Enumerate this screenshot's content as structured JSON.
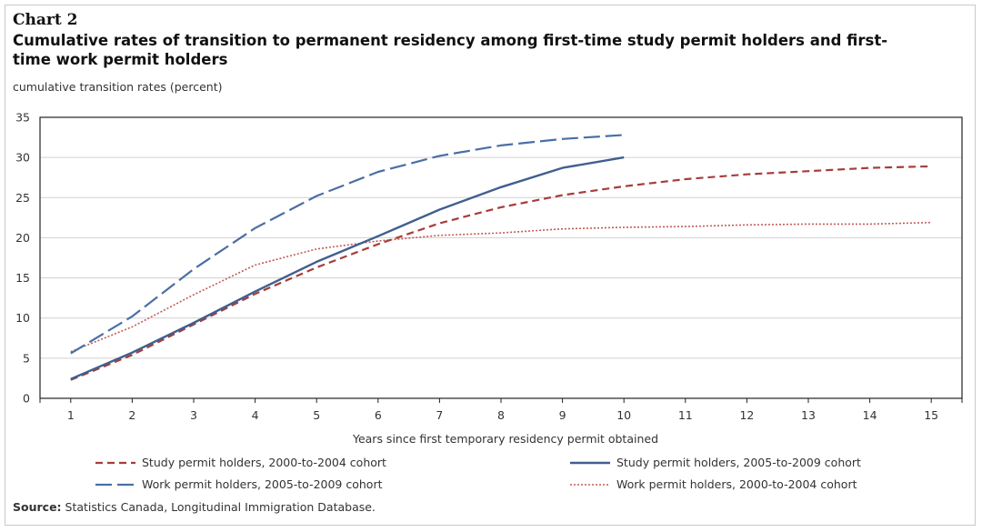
{
  "header": {
    "chart_number": "Chart 2",
    "title": "Cumulative rates of transition to permanent residency among first-time  study permit holders and first-time  work permit holders"
  },
  "footer": {
    "source_label": "Source:",
    "source_text": " Statistics Canada, Longitudinal Immigration Database."
  },
  "chart_data": {
    "type": "line",
    "ylabel": "cumulative transition rates (percent)",
    "xlabel": "Years since first temporary residency permit obtained",
    "ylim": [
      0,
      35
    ],
    "yticks": [
      0,
      5,
      10,
      15,
      20,
      25,
      30,
      35
    ],
    "xlim": [
      0.5,
      15.5
    ],
    "xticks": [
      1,
      2,
      3,
      4,
      5,
      6,
      7,
      8,
      9,
      10,
      11,
      12,
      13,
      14,
      15
    ],
    "grid": true,
    "legend_position": "bottom",
    "series": [
      {
        "name": "Study permit holders, 2000-to-2004 cohort",
        "color": "#a63d3a",
        "style": "dashed",
        "x": [
          1,
          2,
          3,
          4,
          5,
          6,
          7,
          8,
          9,
          10,
          11,
          12,
          13,
          14,
          15
        ],
        "values": [
          2.3,
          5.4,
          9.2,
          13.0,
          16.3,
          19.2,
          21.8,
          23.8,
          25.3,
          26.4,
          27.3,
          27.9,
          28.3,
          28.7,
          28.9
        ]
      },
      {
        "name": "Study permit holders, 2005-to-2009 cohort",
        "color": "#3f5f8f",
        "style": "solid",
        "x": [
          1,
          2,
          3,
          4,
          5,
          6,
          7,
          8,
          9,
          10
        ],
        "values": [
          2.4,
          5.7,
          9.4,
          13.3,
          17.0,
          20.2,
          23.5,
          26.3,
          28.7,
          30.0
        ]
      },
      {
        "name": "Work permit holders, 2005-to-2009 cohort",
        "color": "#4a6fa5",
        "style": "longdash",
        "x": [
          1,
          2,
          3,
          4,
          5,
          6,
          7,
          8,
          9,
          10
        ],
        "values": [
          5.6,
          10.2,
          16.1,
          21.2,
          25.2,
          28.2,
          30.2,
          31.5,
          32.3,
          32.8
        ]
      },
      {
        "name": "Work permit holders, 2000-to-2004 cohort",
        "color": "#c25b55",
        "style": "dotted",
        "x": [
          1,
          2,
          3,
          4,
          5,
          6,
          7,
          8,
          9,
          10,
          11,
          12,
          13,
          14,
          15
        ],
        "values": [
          5.8,
          8.9,
          12.9,
          16.6,
          18.6,
          19.6,
          20.3,
          20.6,
          21.1,
          21.3,
          21.4,
          21.6,
          21.7,
          21.7,
          21.9
        ]
      }
    ]
  }
}
